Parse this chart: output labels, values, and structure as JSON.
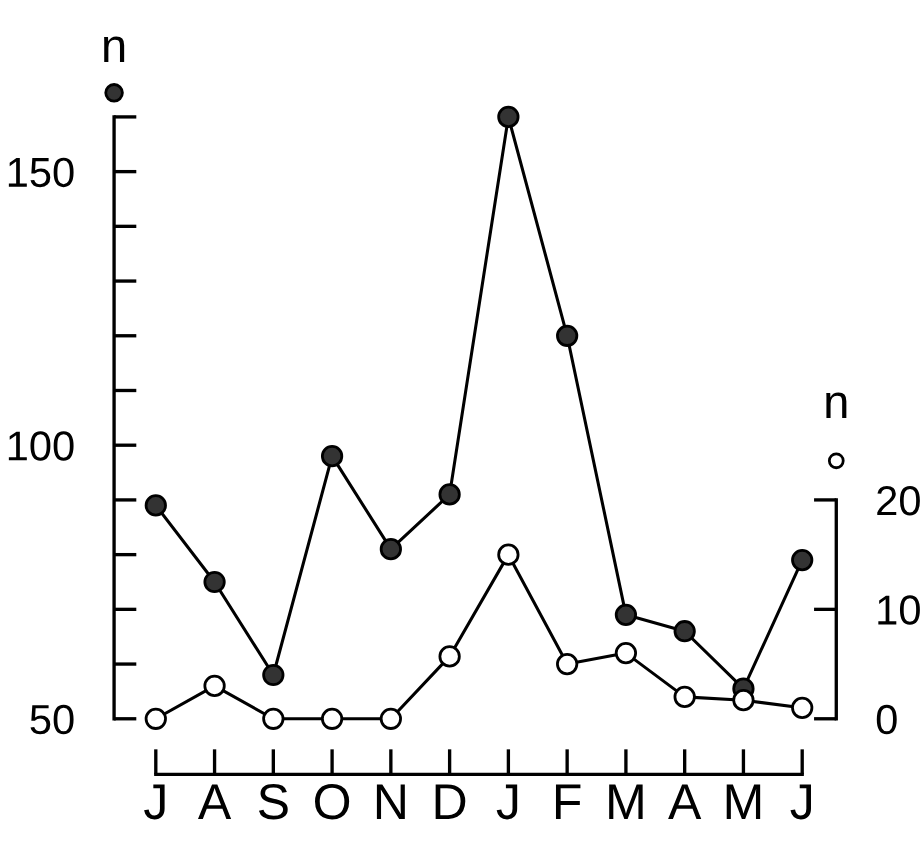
{
  "chart_data": {
    "type": "line",
    "categories": [
      "J",
      "A",
      "S",
      "O",
      "N",
      "D",
      "J",
      "F",
      "M",
      "A",
      "M",
      "J"
    ],
    "ylabel": "n",
    "y2label": "n",
    "series": [
      {
        "color": "#333333",
        "marker": "circle",
        "values": [
          89,
          75,
          58,
          98,
          81,
          91,
          160,
          120,
          69,
          66,
          55.5,
          79
        ]
      },
      {
        "color": "#ffffff",
        "marker": "circle",
        "axis": "y2",
        "values": [
          0,
          3,
          0,
          0,
          0,
          5.7,
          15,
          5,
          6,
          2,
          1.7,
          1
        ]
      }
    ],
    "ylim": [
      50,
      160
    ],
    "yticks": [
      50,
      {
        "value": 60,
        "label": null
      },
      {
        "value": 70,
        "label": null
      },
      {
        "value": 80,
        "label": null
      },
      {
        "value": 90,
        "label": null
      },
      100,
      {
        "value": 110,
        "label": null
      },
      {
        "value": 120,
        "label": null
      },
      {
        "value": 130,
        "label": null
      },
      {
        "value": 140,
        "label": null
      },
      150,
      {
        "value": 160,
        "label": null
      }
    ],
    "y2lim": [
      0,
      55
    ],
    "y2ticks": [
      0,
      10,
      20
    ],
    "grid": false,
    "legend": false
  }
}
